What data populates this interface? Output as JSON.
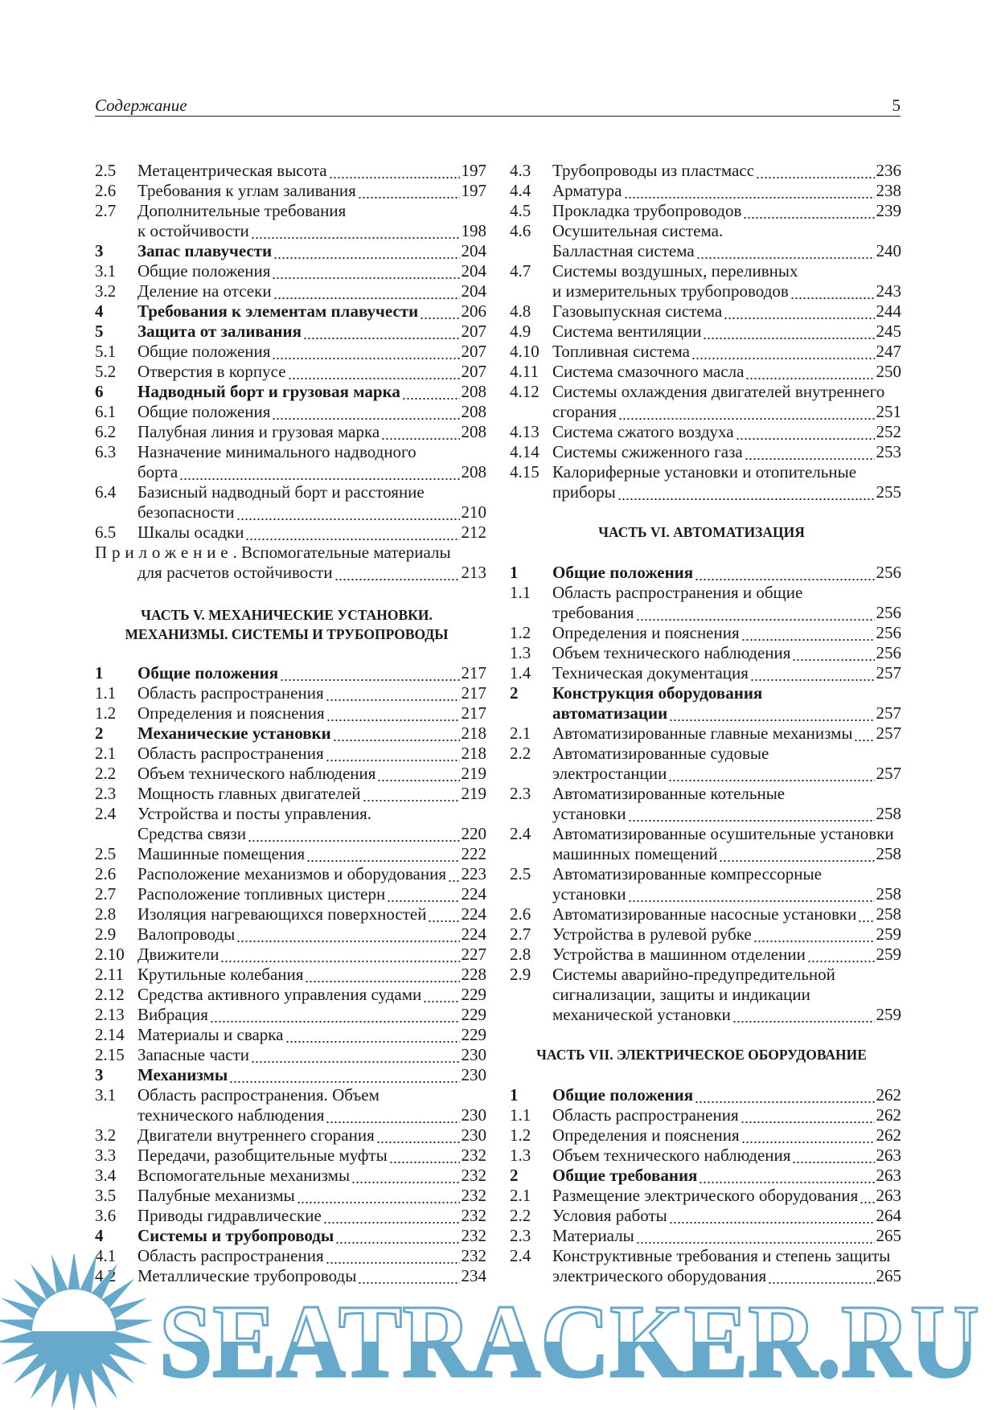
{
  "header": {
    "title": "Содержание",
    "page_number": "5"
  },
  "left_column": [
    {
      "type": "entry",
      "num": "2.5",
      "lines": [
        "Метацентрическая высота"
      ],
      "page": "197"
    },
    {
      "type": "entry",
      "num": "2.6",
      "lines": [
        "Требования к углам заливания"
      ],
      "page": "197"
    },
    {
      "type": "entry",
      "num": "2.7",
      "lines": [
        "Дополнительные требования",
        "к остойчивости"
      ],
      "page": "198"
    },
    {
      "type": "entry",
      "num": "3",
      "bold": true,
      "lines": [
        "Запас плавучести"
      ],
      "page": "204"
    },
    {
      "type": "entry",
      "num": "3.1",
      "lines": [
        "Общие положения"
      ],
      "page": "204"
    },
    {
      "type": "entry",
      "num": "3.2",
      "lines": [
        "Деление на отсеки"
      ],
      "page": "204"
    },
    {
      "type": "entry",
      "num": "4",
      "bold": true,
      "lines": [
        "Требования к элементам плавучести"
      ],
      "page": "206"
    },
    {
      "type": "entry",
      "num": "5",
      "bold": true,
      "lines": [
        "Защита от заливания"
      ],
      "page": "207"
    },
    {
      "type": "entry",
      "num": "5.1",
      "lines": [
        "Общие положения"
      ],
      "page": "207"
    },
    {
      "type": "entry",
      "num": "5.2",
      "lines": [
        "Отверстия в корпусе"
      ],
      "page": "207"
    },
    {
      "type": "entry",
      "num": "6",
      "bold": true,
      "lines": [
        "Надводный борт и грузовая марка"
      ],
      "page": "208"
    },
    {
      "type": "entry",
      "num": "6.1",
      "lines": [
        "Общие положения"
      ],
      "page": "208"
    },
    {
      "type": "entry",
      "num": "6.2",
      "lines": [
        "Палубная линия и грузовая марка"
      ],
      "page": "208"
    },
    {
      "type": "entry",
      "num": "6.3",
      "lines": [
        "Назначение минимального надводного",
        "борта"
      ],
      "page": "208"
    },
    {
      "type": "entry",
      "num": "6.4",
      "lines": [
        "Базисный надводный борт и расстояние",
        "безопасности"
      ],
      "page": "210"
    },
    {
      "type": "entry",
      "num": "6.5",
      "lines": [
        "Шкалы осадки"
      ],
      "page": "212"
    },
    {
      "type": "appendix",
      "label": "Приложение",
      "rest": ". Вспомогательные материалы",
      "lines": [
        "для расчетов остойчивости"
      ],
      "page": "213"
    },
    {
      "type": "heading",
      "lines": [
        "ЧАСТЬ V. МЕХАНИЧЕСКИЕ УСТАНОВКИ.",
        "МЕХАНИЗМЫ. СИСТЕМЫ И ТРУБОПРОВОДЫ"
      ]
    },
    {
      "type": "entry",
      "num": "1",
      "bold": true,
      "lines": [
        "Общие положения"
      ],
      "page": "217"
    },
    {
      "type": "entry",
      "num": "1.1",
      "lines": [
        "Область распространения"
      ],
      "page": "217"
    },
    {
      "type": "entry",
      "num": "1.2",
      "lines": [
        "Определения и пояснения"
      ],
      "page": "217"
    },
    {
      "type": "entry",
      "num": "2",
      "bold": true,
      "lines": [
        "Механические установки"
      ],
      "page": "218"
    },
    {
      "type": "entry",
      "num": "2.1",
      "lines": [
        "Область распространения"
      ],
      "page": "218"
    },
    {
      "type": "entry",
      "num": "2.2",
      "lines": [
        "Объем технического наблюдения"
      ],
      "page": "219"
    },
    {
      "type": "entry",
      "num": "2.3",
      "lines": [
        "Мощность главных двигателей"
      ],
      "page": "219"
    },
    {
      "type": "entry",
      "num": "2.4",
      "lines": [
        "Устройства и посты управления.",
        "Средства связи"
      ],
      "page": "220"
    },
    {
      "type": "entry",
      "num": "2.5",
      "lines": [
        "Машинные помещения"
      ],
      "page": "222"
    },
    {
      "type": "entry",
      "num": "2.6",
      "lines": [
        "Расположение механизмов и оборудования"
      ],
      "page": "223"
    },
    {
      "type": "entry",
      "num": "2.7",
      "lines": [
        "Расположение топливных цистерн"
      ],
      "page": "224"
    },
    {
      "type": "entry",
      "num": "2.8",
      "lines": [
        "Изоляция нагревающихся поверхностей"
      ],
      "page": "224"
    },
    {
      "type": "entry",
      "num": "2.9",
      "lines": [
        "Валопроводы"
      ],
      "page": "224"
    },
    {
      "type": "entry",
      "num": "2.10",
      "lines": [
        "Движители"
      ],
      "page": "227"
    },
    {
      "type": "entry",
      "num": "2.11",
      "lines": [
        "Крутильные колебания"
      ],
      "page": "228"
    },
    {
      "type": "entry",
      "num": "2.12",
      "lines": [
        "Средства активного управления судами"
      ],
      "page": "229"
    },
    {
      "type": "entry",
      "num": "2.13",
      "lines": [
        "Вибрация"
      ],
      "page": "229"
    },
    {
      "type": "entry",
      "num": "2.14",
      "lines": [
        "Материалы и сварка"
      ],
      "page": "229"
    },
    {
      "type": "entry",
      "num": "2.15",
      "lines": [
        "Запасные части"
      ],
      "page": "230"
    },
    {
      "type": "entry",
      "num": "3",
      "bold": true,
      "lines": [
        "Механизмы"
      ],
      "page": "230"
    },
    {
      "type": "entry",
      "num": "3.1",
      "lines": [
        "Область распространения. Объем",
        "технического наблюдения"
      ],
      "page": "230"
    },
    {
      "type": "entry",
      "num": "3.2",
      "lines": [
        "Двигатели внутреннего сгорания"
      ],
      "page": "230"
    },
    {
      "type": "entry",
      "num": "3.3",
      "lines": [
        "Передачи, разобщительные муфты"
      ],
      "page": "232"
    },
    {
      "type": "entry",
      "num": "3.4",
      "lines": [
        "Вспомогательные механизмы"
      ],
      "page": "232"
    },
    {
      "type": "entry",
      "num": "3.5",
      "lines": [
        "Палубные механизмы"
      ],
      "page": "232"
    },
    {
      "type": "entry",
      "num": "3.6",
      "lines": [
        "Приводы гидравлические"
      ],
      "page": "232"
    },
    {
      "type": "entry",
      "num": "4",
      "bold": true,
      "lines": [
        "Системы и трубопроводы"
      ],
      "page": "232"
    },
    {
      "type": "entry",
      "num": "4.1",
      "lines": [
        "Область распространения"
      ],
      "page": "232"
    },
    {
      "type": "entry",
      "num": "4.2",
      "lines": [
        "Металлические трубопроводы"
      ],
      "page": "234"
    }
  ],
  "right_column": [
    {
      "type": "entry",
      "num": "4.3",
      "lines": [
        "Трубопроводы из пластмасс"
      ],
      "page": "236"
    },
    {
      "type": "entry",
      "num": "4.4",
      "lines": [
        "Арматура"
      ],
      "page": "238"
    },
    {
      "type": "entry",
      "num": "4.5",
      "lines": [
        "Прокладка трубопроводов"
      ],
      "page": "239"
    },
    {
      "type": "entry",
      "num": "4.6",
      "lines": [
        "Осушительная система.",
        "Балластная система"
      ],
      "page": "240"
    },
    {
      "type": "entry",
      "num": "4.7",
      "lines": [
        "Системы воздушных, переливных",
        "и измерительных трубопроводов"
      ],
      "page": "243"
    },
    {
      "type": "entry",
      "num": "4.8",
      "lines": [
        "Газовыпускная система"
      ],
      "page": "244"
    },
    {
      "type": "entry",
      "num": "4.9",
      "lines": [
        "Система вентиляции"
      ],
      "page": "245"
    },
    {
      "type": "entry",
      "num": "4.10",
      "lines": [
        "Топливная система"
      ],
      "page": "247"
    },
    {
      "type": "entry",
      "num": "4.11",
      "lines": [
        "Система смазочного масла"
      ],
      "page": "250"
    },
    {
      "type": "entry",
      "num": "4.12",
      "lines": [
        "Системы охлаждения двигателей внутреннего",
        "сгорания"
      ],
      "page": "251"
    },
    {
      "type": "entry",
      "num": "4.13",
      "lines": [
        "Система сжатого воздуха"
      ],
      "page": "252"
    },
    {
      "type": "entry",
      "num": "4.14",
      "lines": [
        "Системы сжиженного газа"
      ],
      "page": "253"
    },
    {
      "type": "entry",
      "num": "4.15",
      "lines": [
        "Калориферные установки и отопительные",
        "приборы"
      ],
      "page": "255"
    },
    {
      "type": "heading",
      "lines": [
        "ЧАСТЬ VI. АВТОМАТИЗАЦИЯ"
      ]
    },
    {
      "type": "entry",
      "num": "1",
      "bold": true,
      "lines": [
        "Общие положения"
      ],
      "page": "256"
    },
    {
      "type": "entry",
      "num": "1.1",
      "lines": [
        "Область распространения и общие",
        "требования"
      ],
      "page": "256"
    },
    {
      "type": "entry",
      "num": "1.2",
      "lines": [
        "Определения и пояснения"
      ],
      "page": "256"
    },
    {
      "type": "entry",
      "num": "1.3",
      "lines": [
        "Объем технического наблюдения"
      ],
      "page": "256"
    },
    {
      "type": "entry",
      "num": "1.4",
      "lines": [
        "Техническая документация"
      ],
      "page": "257"
    },
    {
      "type": "entry",
      "num": "2",
      "bold": true,
      "lines": [
        "Конструкция оборудования",
        "автоматизации"
      ],
      "page": "257"
    },
    {
      "type": "entry",
      "num": "2.1",
      "lines": [
        "Автоматизированные главные механизмы"
      ],
      "page": "257"
    },
    {
      "type": "entry",
      "num": "2.2",
      "lines": [
        "Автоматизированные судовые",
        "электростанции"
      ],
      "page": "257"
    },
    {
      "type": "entry",
      "num": "2.3",
      "lines": [
        "Автоматизированные котельные",
        "установки"
      ],
      "page": "258"
    },
    {
      "type": "entry",
      "num": "2.4",
      "lines": [
        "Автоматизированные осушительные установки",
        "машинных помещений"
      ],
      "page": "258"
    },
    {
      "type": "entry",
      "num": "2.5",
      "lines": [
        "Автоматизированные компрессорные",
        "установки"
      ],
      "page": "258"
    },
    {
      "type": "entry",
      "num": "2.6",
      "lines": [
        "Автоматизированные насосные установки"
      ],
      "page": "258"
    },
    {
      "type": "entry",
      "num": "2.7",
      "lines": [
        "Устройства в рулевой рубке"
      ],
      "page": "259"
    },
    {
      "type": "entry",
      "num": "2.8",
      "lines": [
        "Устройства в машинном отделении"
      ],
      "page": "259"
    },
    {
      "type": "entry",
      "num": "2.9",
      "lines": [
        "Системы аварийно-предупредительной",
        "сигнализации, защиты и индикации",
        "механической установки"
      ],
      "page": "259"
    },
    {
      "type": "heading",
      "lines": [
        "ЧАСТЬ VII. ЭЛЕКТРИЧЕСКОЕ ОБОРУДОВАНИЕ"
      ]
    },
    {
      "type": "entry",
      "num": "1",
      "bold": true,
      "lines": [
        "Общие положения"
      ],
      "page": "262"
    },
    {
      "type": "entry",
      "num": "1.1",
      "lines": [
        "Область распространения"
      ],
      "page": "262"
    },
    {
      "type": "entry",
      "num": "1.2",
      "lines": [
        "Определения и пояснения"
      ],
      "page": "262"
    },
    {
      "type": "entry",
      "num": "1.3",
      "lines": [
        "Объем технического наблюдения"
      ],
      "page": "263"
    },
    {
      "type": "entry",
      "num": "2",
      "bold": true,
      "lines": [
        "Общие требования"
      ],
      "page": "263"
    },
    {
      "type": "entry",
      "num": "2.1",
      "lines": [
        "Размещение электрического оборудования"
      ],
      "page": "263"
    },
    {
      "type": "entry",
      "num": "2.2",
      "lines": [
        "Условия работы"
      ],
      "page": "264"
    },
    {
      "type": "entry",
      "num": "2.3",
      "lines": [
        "Материалы"
      ],
      "page": "265"
    },
    {
      "type": "entry",
      "num": "2.4",
      "lines": [
        "Конструктивные требования и степень защиты",
        "электрического оборудования"
      ],
      "page": "265"
    }
  ],
  "watermark": {
    "text": "SEATRACKER.RU",
    "color": "#67a9cb",
    "icon": "sun-icon"
  }
}
